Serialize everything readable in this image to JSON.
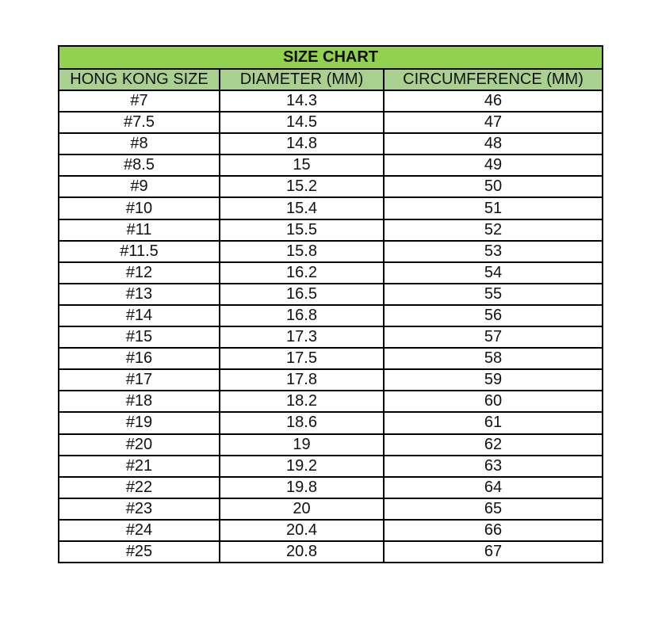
{
  "title": "SIZE CHART",
  "colors": {
    "title_bg": "#92d050",
    "header_bg": "#a9d08e",
    "border": "#000000"
  },
  "columns": [
    "HONG KONG SIZE",
    "DIAMETER (MM)",
    "CIRCUMFERENCE (MM)"
  ],
  "rows": [
    [
      "#7",
      "14.3",
      "46"
    ],
    [
      "#7.5",
      "14.5",
      "47"
    ],
    [
      "#8",
      "14.8",
      "48"
    ],
    [
      "#8.5",
      "15",
      "49"
    ],
    [
      "#9",
      "15.2",
      "50"
    ],
    [
      "#10",
      "15.4",
      "51"
    ],
    [
      "#11",
      "15.5",
      "52"
    ],
    [
      "#11.5",
      "15.8",
      "53"
    ],
    [
      "#12",
      "16.2",
      "54"
    ],
    [
      "#13",
      "16.5",
      "55"
    ],
    [
      "#14",
      "16.8",
      "56"
    ],
    [
      "#15",
      "17.3",
      "57"
    ],
    [
      "#16",
      "17.5",
      "58"
    ],
    [
      "#17",
      "17.8",
      "59"
    ],
    [
      "#18",
      "18.2",
      "60"
    ],
    [
      "#19",
      "18.6",
      "61"
    ],
    [
      "#20",
      "19",
      "62"
    ],
    [
      "#21",
      "19.2",
      "63"
    ],
    [
      "#22",
      "19.8",
      "64"
    ],
    [
      "#23",
      "20",
      "65"
    ],
    [
      "#24",
      "20.4",
      "66"
    ],
    [
      "#25",
      "20.8",
      "67"
    ]
  ]
}
